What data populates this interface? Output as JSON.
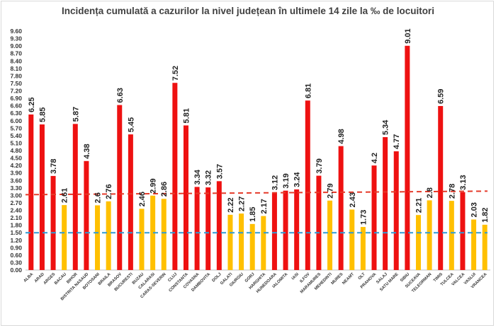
{
  "chart_data": {
    "type": "bar",
    "title": "Incidența cumulată a cazurilor la nivel județean în ultimele 14 zile la ‰ de locuitori",
    "categories": [
      "ALBA",
      "ARAD",
      "ARGES",
      "BACAU",
      "BIHOR",
      "BISTRITA NASAUD",
      "BOTOSANI",
      "BRAILA",
      "BRASOV",
      "BUCURESTI",
      "BUZAU",
      "CALARASI",
      "CARAS-SEVERIN",
      "CLUJ",
      "CONSTANTA",
      "COVASNA",
      "DAMBOVITA",
      "DOLJ",
      "GALATI",
      "GIURGIU",
      "GORJ",
      "HARGHITA",
      "HUNEDOARA",
      "IALOMITA",
      "IASI",
      "ILFOV",
      "MARAMURES",
      "MEHEDINTI",
      "MURES",
      "NEAMT",
      "OLT",
      "PRAHOVA",
      "SALAJ",
      "SATU MARE",
      "SIBIU",
      "SUCEAVA",
      "TELEORMAN",
      "TIMIS",
      "TULCEA",
      "VALCEA",
      "VASLUI",
      "VRANCEA"
    ],
    "values": [
      6.25,
      5.85,
      3.78,
      2.61,
      5.87,
      4.38,
      2.6,
      2.76,
      6.63,
      5.45,
      2.46,
      2.99,
      2.86,
      7.52,
      5.81,
      3.34,
      3.32,
      3.57,
      2.22,
      2.27,
      1.85,
      2.17,
      3.12,
      3.19,
      3.24,
      6.81,
      3.79,
      2.79,
      4.98,
      2.43,
      1.73,
      4.2,
      5.34,
      4.77,
      9.01,
      2.21,
      2.8,
      6.59,
      2.78,
      3.13,
      2.03,
      1.82
    ],
    "value_labels": [
      "6.25",
      "5.85",
      "3.78",
      "2.61",
      "5.87",
      "4.38",
      "2.6",
      "2.76",
      "6.63",
      "5.45",
      "2.46",
      "2.99",
      "2.86",
      "7.52",
      "5.81",
      "3.34",
      "3.32",
      "3.57",
      "2.22",
      "2.27",
      "1.85",
      "2.17",
      "3.12",
      "3.19",
      "3.24",
      "6.81",
      "3.79",
      "2.79",
      "4.98",
      "2.43",
      "1.73",
      "4.2",
      "5.34",
      "4.77",
      "9.01",
      "2.21",
      "2.8",
      "6.59",
      "2.78",
      "3.13",
      "2.03",
      "1.82"
    ],
    "yticks": [
      "0.00",
      "0.30",
      "0.60",
      "0.90",
      "1.20",
      "1.50",
      "1.80",
      "2.10",
      "2.40",
      "2.70",
      "3.00",
      "3.30",
      "3.60",
      "3.90",
      "4.20",
      "4.50",
      "4.80",
      "5.10",
      "5.40",
      "5.70",
      "6.00",
      "6.30",
      "6.60",
      "6.90",
      "7.20",
      "7.50",
      "7.80",
      "8.10",
      "8.40",
      "8.70",
      "9.00",
      "9.30",
      "9.60"
    ],
    "ylim": [
      0,
      9.6
    ],
    "threshold_red": 3.0,
    "threshold_blue": 1.5,
    "colors": {
      "above_threshold": "#ee1111",
      "below_threshold": "#ffc000",
      "red_line": "#e53a2a",
      "blue_line": "#2e9bd6",
      "axis": "#bfbfbf",
      "text": "#333333"
    }
  }
}
